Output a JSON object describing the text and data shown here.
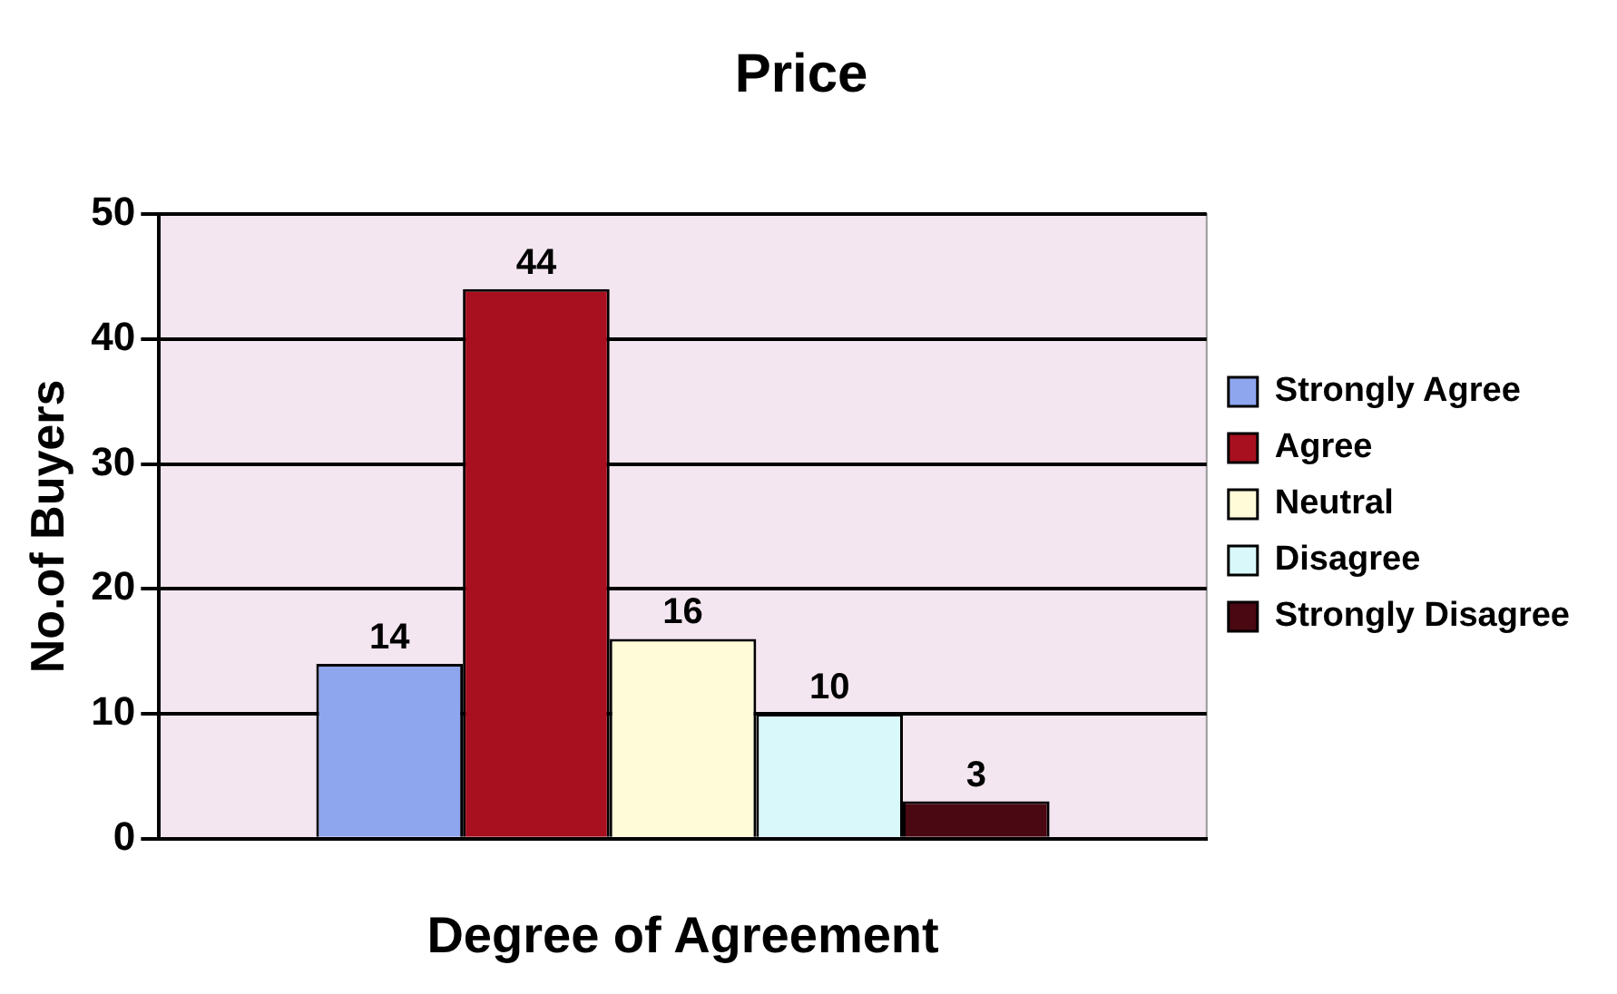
{
  "chart_data": {
    "type": "bar",
    "title": "Price",
    "xlabel": "Degree of Agreement",
    "ylabel": "No.of Buyers",
    "categories": [
      null
    ],
    "series": [
      {
        "name": "Strongly Agree",
        "color": "#8ea6ee",
        "values": [
          14
        ]
      },
      {
        "name": "Agree",
        "color": "#a8101f",
        "values": [
          44
        ]
      },
      {
        "name": "Neutral",
        "color": "#fffbd8",
        "values": [
          16
        ]
      },
      {
        "name": "Disagree",
        "color": "#d8f8fa",
        "values": [
          10
        ]
      },
      {
        "name": "Strongly Disagree",
        "color": "#4a0812",
        "values": [
          3
        ]
      }
    ],
    "ylim": [
      0,
      50
    ],
    "yticks": [
      0,
      10,
      20,
      30,
      40,
      50
    ],
    "grid": "y",
    "legend": "right",
    "data_labels": true
  }
}
